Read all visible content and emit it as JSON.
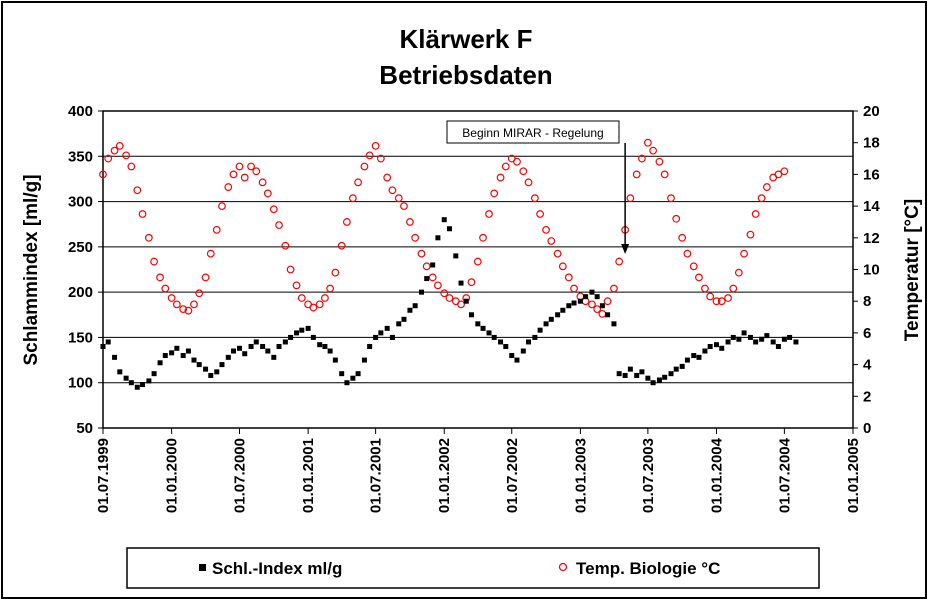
{
  "chart_data": {
    "type": "scatter",
    "title": "Klärwerk F",
    "subtitle": "Betriebsdaten",
    "ylabel": "Schlammindex [ml/g]",
    "y2label": "Temperatur [°C]",
    "xlabel": "",
    "ylim": [
      50,
      400
    ],
    "y2lim": [
      0,
      20
    ],
    "yticks": [
      "50",
      "100",
      "150",
      "200",
      "250",
      "300",
      "350",
      "400"
    ],
    "y2ticks": [
      "0",
      "2",
      "4",
      "6",
      "8",
      "10",
      "12",
      "14",
      "16",
      "18",
      "20"
    ],
    "xticks": [
      "01.07.1999",
      "01.01.2000",
      "01.07.2000",
      "01.01.2001",
      "01.07.2001",
      "01.01.2002",
      "01.07.2002",
      "01.01.2003",
      "01.07.2003",
      "01.01.2004",
      "01.07.2004",
      "01.01.2005"
    ],
    "grid": "horizontal",
    "legend_position": "bottom",
    "annotation": {
      "text": "Beginn MIRAR - Regelung",
      "x": "01.05.2003"
    },
    "series": [
      {
        "name": "Schl.-Index ml/g",
        "axis": "left",
        "marker": "filled-square",
        "color": "#000000",
        "points": [
          [
            "01.07.1999",
            140
          ],
          [
            "15.07.1999",
            145
          ],
          [
            "01.08.1999",
            128
          ],
          [
            "15.08.1999",
            112
          ],
          [
            "01.09.1999",
            105
          ],
          [
            "15.09.1999",
            100
          ],
          [
            "01.10.1999",
            95
          ],
          [
            "15.10.1999",
            98
          ],
          [
            "01.11.1999",
            102
          ],
          [
            "15.11.1999",
            110
          ],
          [
            "01.12.1999",
            122
          ],
          [
            "15.12.1999",
            130
          ],
          [
            "01.01.2000",
            133
          ],
          [
            "15.01.2000",
            138
          ],
          [
            "01.02.2000",
            130
          ],
          [
            "15.02.2000",
            135
          ],
          [
            "01.03.2000",
            125
          ],
          [
            "15.03.2000",
            120
          ],
          [
            "01.04.2000",
            115
          ],
          [
            "15.04.2000",
            108
          ],
          [
            "01.05.2000",
            112
          ],
          [
            "15.05.2000",
            120
          ],
          [
            "01.06.2000",
            128
          ],
          [
            "15.06.2000",
            135
          ],
          [
            "01.07.2000",
            138
          ],
          [
            "15.07.2000",
            132
          ],
          [
            "01.08.2000",
            140
          ],
          [
            "15.08.2000",
            145
          ],
          [
            "01.09.2000",
            140
          ],
          [
            "15.09.2000",
            135
          ],
          [
            "01.10.2000",
            128
          ],
          [
            "15.10.2000",
            140
          ],
          [
            "01.11.2000",
            145
          ],
          [
            "15.11.2000",
            150
          ],
          [
            "01.12.2000",
            155
          ],
          [
            "15.12.2000",
            158
          ],
          [
            "01.01.2001",
            160
          ],
          [
            "15.01.2001",
            150
          ],
          [
            "01.02.2001",
            142
          ],
          [
            "15.02.2001",
            140
          ],
          [
            "01.03.2001",
            135
          ],
          [
            "15.03.2001",
            125
          ],
          [
            "01.04.2001",
            110
          ],
          [
            "15.04.2001",
            100
          ],
          [
            "01.05.2001",
            105
          ],
          [
            "15.05.2001",
            110
          ],
          [
            "01.06.2001",
            125
          ],
          [
            "15.06.2001",
            140
          ],
          [
            "01.07.2001",
            150
          ],
          [
            "15.07.2001",
            155
          ],
          [
            "01.08.2001",
            160
          ],
          [
            "15.08.2001",
            150
          ],
          [
            "01.09.2001",
            165
          ],
          [
            "15.09.2001",
            170
          ],
          [
            "01.10.2001",
            180
          ],
          [
            "15.10.2001",
            185
          ],
          [
            "01.11.2001",
            200
          ],
          [
            "15.11.2001",
            215
          ],
          [
            "01.12.2001",
            230
          ],
          [
            "15.12.2001",
            260
          ],
          [
            "01.01.2002",
            280
          ],
          [
            "15.01.2002",
            270
          ],
          [
            "01.02.2002",
            240
          ],
          [
            "15.02.2002",
            210
          ],
          [
            "01.03.2002",
            190
          ],
          [
            "15.03.2002",
            175
          ],
          [
            "01.04.2002",
            165
          ],
          [
            "15.04.2002",
            160
          ],
          [
            "01.05.2002",
            155
          ],
          [
            "15.05.2002",
            150
          ],
          [
            "01.06.2002",
            145
          ],
          [
            "15.06.2002",
            140
          ],
          [
            "01.07.2002",
            130
          ],
          [
            "15.07.2002",
            125
          ],
          [
            "01.08.2002",
            135
          ],
          [
            "15.08.2002",
            145
          ],
          [
            "01.09.2002",
            150
          ],
          [
            "15.09.2002",
            158
          ],
          [
            "01.10.2002",
            165
          ],
          [
            "15.10.2002",
            170
          ],
          [
            "01.11.2002",
            175
          ],
          [
            "15.11.2002",
            180
          ],
          [
            "01.12.2002",
            185
          ],
          [
            "15.12.2002",
            188
          ],
          [
            "01.01.2003",
            190
          ],
          [
            "15.01.2003",
            195
          ],
          [
            "01.02.2003",
            200
          ],
          [
            "15.02.2003",
            195
          ],
          [
            "01.03.2003",
            185
          ],
          [
            "15.03.2003",
            175
          ],
          [
            "01.04.2003",
            165
          ],
          [
            "15.04.2003",
            110
          ],
          [
            "01.05.2003",
            108
          ],
          [
            "15.05.2003",
            115
          ],
          [
            "01.06.2003",
            108
          ],
          [
            "15.06.2003",
            112
          ],
          [
            "01.07.2003",
            105
          ],
          [
            "15.07.2003",
            100
          ],
          [
            "01.08.2003",
            103
          ],
          [
            "15.08.2003",
            106
          ],
          [
            "01.09.2003",
            110
          ],
          [
            "15.09.2003",
            115
          ],
          [
            "01.10.2003",
            118
          ],
          [
            "15.10.2003",
            125
          ],
          [
            "01.11.2003",
            130
          ],
          [
            "15.11.2003",
            128
          ],
          [
            "01.12.2003",
            135
          ],
          [
            "15.12.2003",
            140
          ],
          [
            "01.01.2004",
            142
          ],
          [
            "15.01.2004",
            138
          ],
          [
            "01.02.2004",
            145
          ],
          [
            "15.02.2004",
            150
          ],
          [
            "01.03.2004",
            148
          ],
          [
            "15.03.2004",
            155
          ],
          [
            "01.04.2004",
            150
          ],
          [
            "15.04.2004",
            145
          ],
          [
            "01.05.2004",
            148
          ],
          [
            "15.05.2004",
            152
          ],
          [
            "01.06.2004",
            145
          ],
          [
            "15.06.2004",
            140
          ],
          [
            "01.07.2004",
            148
          ],
          [
            "15.07.2004",
            150
          ],
          [
            "01.08.2004",
            145
          ]
        ]
      },
      {
        "name": "Temp. Biologie °C",
        "axis": "right",
        "marker": "open-circle",
        "color": "#ff0000",
        "points": [
          [
            "01.07.1999",
            16.0
          ],
          [
            "15.07.1999",
            17.0
          ],
          [
            "01.08.1999",
            17.5
          ],
          [
            "15.08.1999",
            17.8
          ],
          [
            "01.09.1999",
            17.2
          ],
          [
            "15.09.1999",
            16.5
          ],
          [
            "01.10.1999",
            15.0
          ],
          [
            "15.10.1999",
            13.5
          ],
          [
            "01.11.1999",
            12.0
          ],
          [
            "15.11.1999",
            10.5
          ],
          [
            "01.12.1999",
            9.5
          ],
          [
            "15.12.1999",
            8.8
          ],
          [
            "01.01.2000",
            8.2
          ],
          [
            "15.01.2000",
            7.8
          ],
          [
            "01.02.2000",
            7.5
          ],
          [
            "15.02.2000",
            7.4
          ],
          [
            "01.03.2000",
            7.8
          ],
          [
            "15.03.2000",
            8.5
          ],
          [
            "01.04.2000",
            9.5
          ],
          [
            "15.04.2000",
            11.0
          ],
          [
            "01.05.2000",
            12.5
          ],
          [
            "15.05.2000",
            14.0
          ],
          [
            "01.06.2000",
            15.2
          ],
          [
            "15.06.2000",
            16.0
          ],
          [
            "01.07.2000",
            16.5
          ],
          [
            "15.07.2000",
            15.8
          ],
          [
            "01.08.2000",
            16.5
          ],
          [
            "15.08.2000",
            16.2
          ],
          [
            "01.09.2000",
            15.5
          ],
          [
            "15.09.2000",
            14.8
          ],
          [
            "01.10.2000",
            13.8
          ],
          [
            "15.10.2000",
            12.8
          ],
          [
            "01.11.2000",
            11.5
          ],
          [
            "15.11.2000",
            10.0
          ],
          [
            "01.12.2000",
            9.0
          ],
          [
            "15.12.2000",
            8.2
          ],
          [
            "01.01.2001",
            7.8
          ],
          [
            "15.01.2001",
            7.6
          ],
          [
            "01.02.2001",
            7.8
          ],
          [
            "15.02.2001",
            8.2
          ],
          [
            "01.03.2001",
            8.8
          ],
          [
            "15.03.2001",
            9.8
          ],
          [
            "01.04.2001",
            11.5
          ],
          [
            "15.04.2001",
            13.0
          ],
          [
            "01.05.2001",
            14.5
          ],
          [
            "15.05.2001",
            15.5
          ],
          [
            "01.06.2001",
            16.5
          ],
          [
            "15.06.2001",
            17.2
          ],
          [
            "01.07.2001",
            17.8
          ],
          [
            "15.07.2001",
            17.0
          ],
          [
            "01.08.2001",
            15.8
          ],
          [
            "15.08.2001",
            15.0
          ],
          [
            "01.09.2001",
            14.5
          ],
          [
            "15.09.2001",
            14.0
          ],
          [
            "01.10.2001",
            13.0
          ],
          [
            "15.10.2001",
            12.0
          ],
          [
            "01.11.2001",
            11.0
          ],
          [
            "15.11.2001",
            10.2
          ],
          [
            "01.12.2001",
            9.5
          ],
          [
            "15.12.2001",
            9.0
          ],
          [
            "01.01.2002",
            8.5
          ],
          [
            "15.01.2002",
            8.2
          ],
          [
            "01.02.2002",
            8.0
          ],
          [
            "15.02.2002",
            7.8
          ],
          [
            "01.03.2002",
            8.2
          ],
          [
            "15.03.2002",
            9.2
          ],
          [
            "01.04.2002",
            10.5
          ],
          [
            "15.04.2002",
            12.0
          ],
          [
            "01.05.2002",
            13.5
          ],
          [
            "15.05.2002",
            14.8
          ],
          [
            "01.06.2002",
            15.8
          ],
          [
            "15.06.2002",
            16.5
          ],
          [
            "01.07.2002",
            17.0
          ],
          [
            "15.07.2002",
            16.8
          ],
          [
            "01.08.2002",
            16.2
          ],
          [
            "15.08.2002",
            15.5
          ],
          [
            "01.09.2002",
            14.5
          ],
          [
            "15.09.2002",
            13.5
          ],
          [
            "01.10.2002",
            12.5
          ],
          [
            "15.10.2002",
            11.8
          ],
          [
            "01.11.2002",
            11.0
          ],
          [
            "15.11.2002",
            10.2
          ],
          [
            "01.12.2002",
            9.5
          ],
          [
            "15.12.2002",
            8.8
          ],
          [
            "01.01.2003",
            8.3
          ],
          [
            "15.01.2003",
            8.0
          ],
          [
            "01.02.2003",
            7.8
          ],
          [
            "15.02.2003",
            7.5
          ],
          [
            "01.03.2003",
            7.2
          ],
          [
            "15.03.2003",
            8.0
          ],
          [
            "01.04.2003",
            8.8
          ],
          [
            "15.04.2003",
            10.5
          ],
          [
            "01.05.2003",
            12.5
          ],
          [
            "15.05.2003",
            14.5
          ],
          [
            "01.06.2003",
            16.0
          ],
          [
            "15.06.2003",
            17.0
          ],
          [
            "01.07.2003",
            18.0
          ],
          [
            "15.07.2003",
            17.5
          ],
          [
            "01.08.2003",
            16.8
          ],
          [
            "15.08.2003",
            16.0
          ],
          [
            "01.09.2003",
            14.5
          ],
          [
            "15.09.2003",
            13.2
          ],
          [
            "01.10.2003",
            12.0
          ],
          [
            "15.10.2003",
            11.0
          ],
          [
            "01.11.2003",
            10.2
          ],
          [
            "15.11.2003",
            9.5
          ],
          [
            "01.12.2003",
            8.8
          ],
          [
            "15.12.2003",
            8.3
          ],
          [
            "01.01.2004",
            8.0
          ],
          [
            "15.01.2004",
            8.0
          ],
          [
            "01.02.2004",
            8.2
          ],
          [
            "15.02.2004",
            8.8
          ],
          [
            "01.03.2004",
            9.8
          ],
          [
            "15.03.2004",
            11.0
          ],
          [
            "01.04.2004",
            12.2
          ],
          [
            "15.04.2004",
            13.5
          ],
          [
            "01.05.2004",
            14.5
          ],
          [
            "15.05.2004",
            15.2
          ],
          [
            "01.06.2004",
            15.8
          ],
          [
            "15.06.2004",
            16.0
          ],
          [
            "01.07.2004",
            16.2
          ]
        ]
      }
    ]
  }
}
